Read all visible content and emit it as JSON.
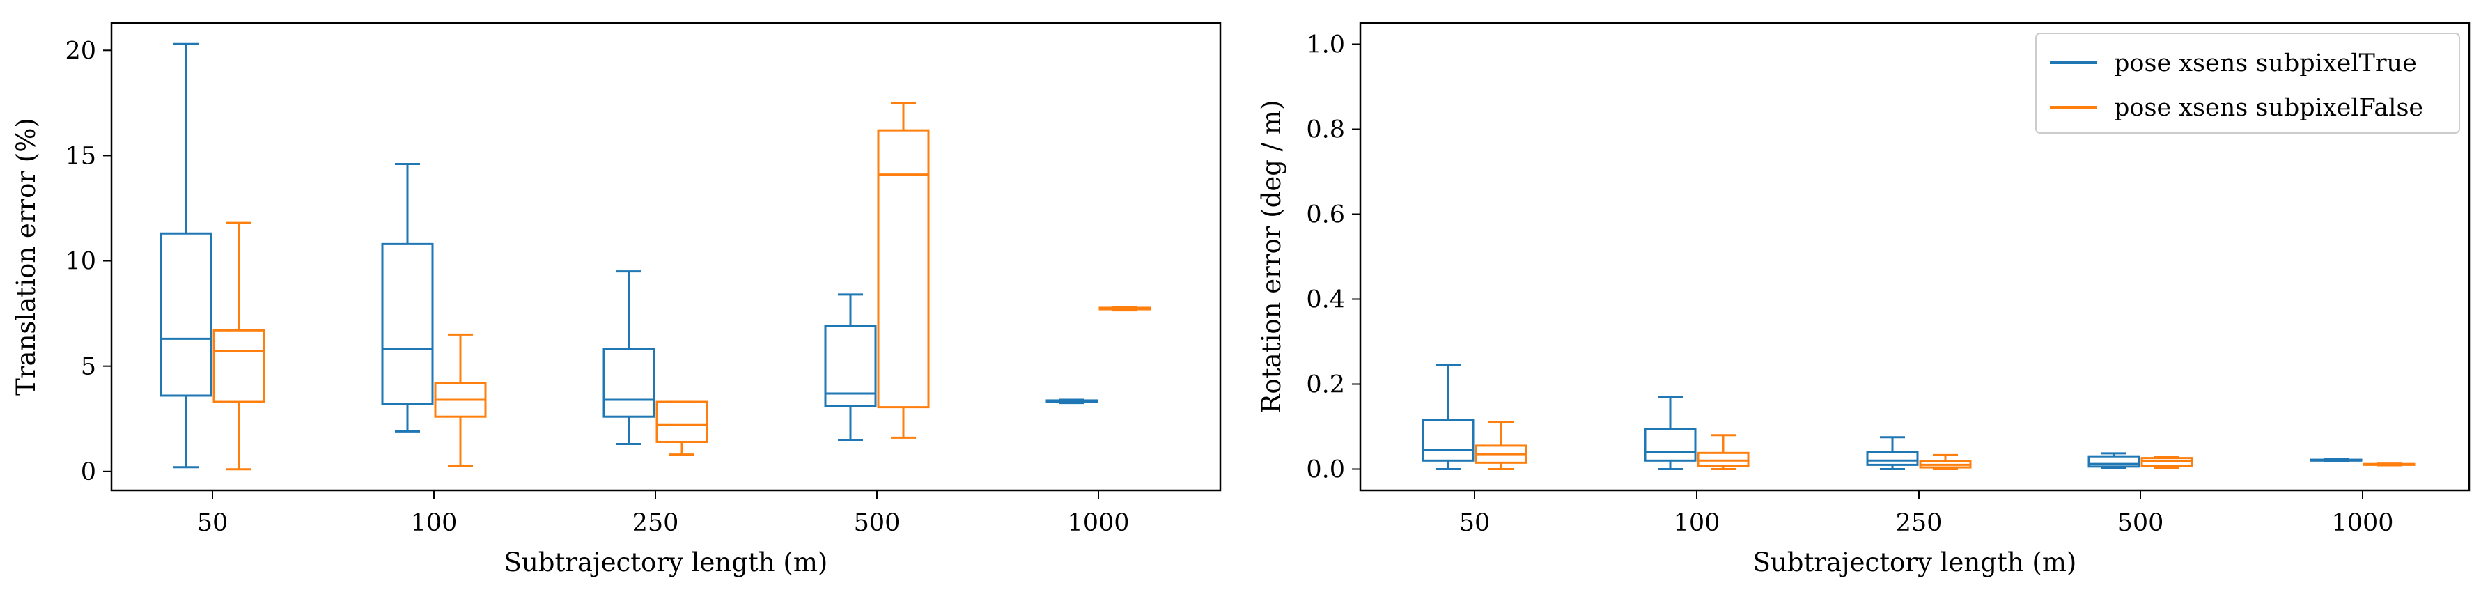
{
  "colors": {
    "true": "#1f77b4",
    "false": "#ff7f0e",
    "axis": "#000000",
    "legend_border": "#cccccc"
  },
  "chart_data": [
    {
      "type": "box",
      "title": "",
      "xlabel": "Subtrajectory length (m)",
      "ylabel": "Translation error (%)",
      "categories": [
        "50",
        "100",
        "250",
        "500",
        "1000"
      ],
      "ylim": [
        -0.9,
        21.3
      ],
      "yticks": [
        0,
        5,
        10,
        15,
        20
      ],
      "legend": null,
      "series": [
        {
          "color_key": "true",
          "boxes": [
            {
              "min": 0.2,
              "q1": 3.6,
              "median": 6.3,
              "q3": 11.3,
              "max": 20.3
            },
            {
              "min": 1.9,
              "q1": 3.2,
              "median": 5.8,
              "q3": 10.8,
              "max": 14.6
            },
            {
              "min": 1.3,
              "q1": 2.6,
              "median": 3.4,
              "q3": 5.8,
              "max": 9.5
            },
            {
              "min": 1.5,
              "q1": 3.1,
              "median": 3.7,
              "q3": 6.9,
              "max": 8.4
            },
            {
              "min": 3.25,
              "q1": 3.3,
              "median": 3.33,
              "q3": 3.37,
              "max": 3.4
            }
          ]
        },
        {
          "color_key": "false",
          "boxes": [
            {
              "min": 0.1,
              "q1": 3.3,
              "median": 5.7,
              "q3": 6.7,
              "max": 11.8
            },
            {
              "min": 0.25,
              "q1": 2.6,
              "median": 3.4,
              "q3": 4.2,
              "max": 6.5
            },
            {
              "min": 0.8,
              "q1": 1.4,
              "median": 2.2,
              "q3": 3.3,
              "max": 3.3
            },
            {
              "min": 1.6,
              "q1": 3.05,
              "median": 14.1,
              "q3": 16.2,
              "max": 17.5
            },
            {
              "min": 7.65,
              "q1": 7.7,
              "median": 7.73,
              "q3": 7.77,
              "max": 7.8
            }
          ]
        }
      ]
    },
    {
      "type": "box",
      "title": "",
      "xlabel": "Subtrajectory length (m)",
      "ylabel": "Rotation error (deg / m)",
      "categories": [
        "50",
        "100",
        "250",
        "500",
        "1000"
      ],
      "ylim": [
        -0.05,
        1.05
      ],
      "yticks": [
        "0.0",
        "0.2",
        "0.4",
        "0.6",
        "0.8",
        "1.0"
      ],
      "legend": {
        "placement": "top-right",
        "entries": [
          "pose xsens subpixelTrue",
          "pose xsens subpixelFalse"
        ]
      },
      "series": [
        {
          "color_key": "true",
          "boxes": [
            {
              "min": 0.0,
              "q1": 0.02,
              "median": 0.045,
              "q3": 0.115,
              "max": 0.245
            },
            {
              "min": 0.0,
              "q1": 0.02,
              "median": 0.04,
              "q3": 0.095,
              "max": 0.17
            },
            {
              "min": 0.0,
              "q1": 0.01,
              "median": 0.02,
              "q3": 0.04,
              "max": 0.075
            },
            {
              "min": 0.002,
              "q1": 0.006,
              "median": 0.012,
              "q3": 0.03,
              "max": 0.037
            },
            {
              "min": 0.019,
              "q1": 0.02,
              "median": 0.021,
              "q3": 0.022,
              "max": 0.023
            }
          ]
        },
        {
          "color_key": "false",
          "boxes": [
            {
              "min": 0.0,
              "q1": 0.015,
              "median": 0.035,
              "q3": 0.055,
              "max": 0.11
            },
            {
              "min": 0.0,
              "q1": 0.008,
              "median": 0.02,
              "q3": 0.038,
              "max": 0.08
            },
            {
              "min": 0.0,
              "q1": 0.004,
              "median": 0.01,
              "q3": 0.018,
              "max": 0.033
            },
            {
              "min": 0.002,
              "q1": 0.007,
              "median": 0.018,
              "q3": 0.026,
              "max": 0.028
            },
            {
              "min": 0.009,
              "q1": 0.01,
              "median": 0.011,
              "q3": 0.012,
              "max": 0.013
            }
          ]
        }
      ]
    }
  ]
}
